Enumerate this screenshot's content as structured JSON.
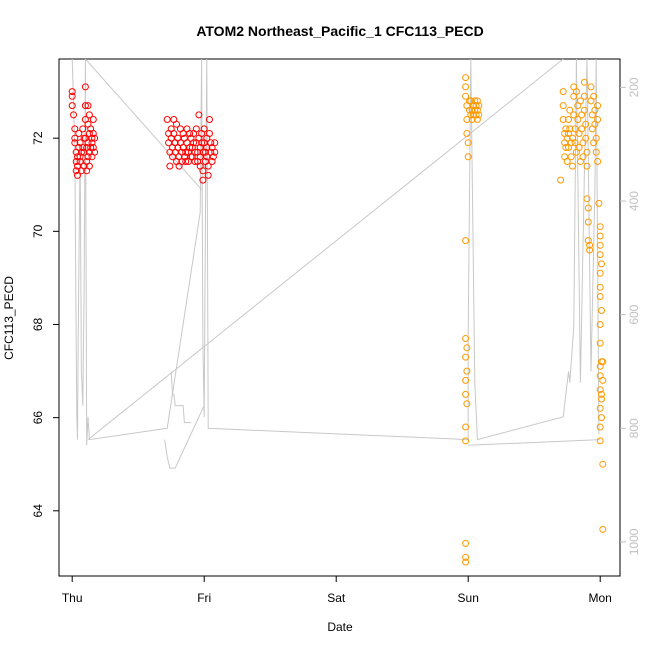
{
  "chart_data": {
    "type": "scatter",
    "title": "ATOM2 Northeast_Pacific_1 CFC113_PECD",
    "xlabel": "Date",
    "ylabel": "CFC113_PECD",
    "xlim": [
      -0.1,
      4.15
    ],
    "ylim": [
      62.6,
      73.7
    ],
    "x_ticks": [
      {
        "value": 0,
        "label": "Thu"
      },
      {
        "value": 1,
        "label": "Fri"
      },
      {
        "value": 2,
        "label": "Sat"
      },
      {
        "value": 3,
        "label": "Sun"
      },
      {
        "value": 4,
        "label": "Mon"
      }
    ],
    "y_ticks": [
      64,
      66,
      68,
      70,
      72
    ],
    "y2_ticks": [
      200,
      400,
      600,
      800,
      1000
    ],
    "y2_range": [
      1060,
      150
    ],
    "colors": {
      "series_a": "#ff0000",
      "series_b": "#ff9900",
      "profile_line": "#c8c8c8",
      "axis": "#000000",
      "right_axis": "#c0c0c0"
    },
    "series": [
      {
        "color": "#ff0000",
        "points": [
          [
            0.0,
            73.0
          ],
          [
            0.0,
            72.9
          ],
          [
            0.0,
            72.7
          ],
          [
            0.01,
            72.5
          ],
          [
            0.02,
            72.2
          ],
          [
            0.02,
            72.0
          ],
          [
            0.02,
            71.9
          ],
          [
            0.03,
            71.7
          ],
          [
            0.03,
            71.5
          ],
          [
            0.04,
            71.6
          ],
          [
            0.04,
            71.4
          ],
          [
            0.04,
            71.2
          ],
          [
            0.03,
            71.3
          ],
          [
            0.05,
            71.8
          ],
          [
            0.05,
            72.1
          ],
          [
            0.06,
            71.9
          ],
          [
            0.06,
            71.6
          ],
          [
            0.06,
            71.5
          ],
          [
            0.07,
            71.7
          ],
          [
            0.07,
            71.3
          ],
          [
            0.08,
            71.8
          ],
          [
            0.08,
            72.2
          ],
          [
            0.09,
            72.0
          ],
          [
            0.09,
            71.7
          ],
          [
            0.09,
            71.4
          ],
          [
            0.1,
            73.1
          ],
          [
            0.1,
            72.7
          ],
          [
            0.1,
            72.4
          ],
          [
            0.1,
            72.0
          ],
          [
            0.11,
            71.8
          ],
          [
            0.11,
            71.5
          ],
          [
            0.11,
            71.3
          ],
          [
            0.12,
            72.7
          ],
          [
            0.12,
            72.3
          ],
          [
            0.12,
            71.9
          ],
          [
            0.12,
            71.6
          ],
          [
            0.13,
            72.5
          ],
          [
            0.13,
            72.1
          ],
          [
            0.13,
            71.7
          ],
          [
            0.13,
            71.4
          ],
          [
            0.14,
            72.2
          ],
          [
            0.14,
            71.8
          ],
          [
            0.15,
            72.0
          ],
          [
            0.15,
            71.6
          ],
          [
            0.15,
            71.9
          ],
          [
            0.16,
            72.4
          ],
          [
            0.16,
            72.1
          ],
          [
            0.16,
            71.8
          ],
          [
            0.17,
            72.0
          ],
          [
            0.17,
            71.7
          ],
          [
            0.72,
            72.4
          ],
          [
            0.73,
            72.1
          ],
          [
            0.73,
            71.9
          ],
          [
            0.74,
            71.7
          ],
          [
            0.74,
            71.4
          ],
          [
            0.75,
            72.2
          ],
          [
            0.75,
            72.0
          ],
          [
            0.76,
            71.8
          ],
          [
            0.76,
            71.6
          ],
          [
            0.77,
            72.4
          ],
          [
            0.77,
            72.1
          ],
          [
            0.78,
            71.9
          ],
          [
            0.78,
            71.7
          ],
          [
            0.79,
            71.5
          ],
          [
            0.79,
            72.3
          ],
          [
            0.8,
            72.0
          ],
          [
            0.8,
            71.8
          ],
          [
            0.81,
            71.6
          ],
          [
            0.81,
            71.4
          ],
          [
            0.82,
            72.2
          ],
          [
            0.82,
            71.9
          ],
          [
            0.83,
            71.7
          ],
          [
            0.83,
            71.5
          ],
          [
            0.84,
            72.1
          ],
          [
            0.84,
            71.8
          ],
          [
            0.85,
            71.6
          ],
          [
            0.85,
            72.0
          ],
          [
            0.86,
            71.7
          ],
          [
            0.86,
            71.5
          ],
          [
            0.87,
            72.2
          ],
          [
            0.87,
            71.9
          ],
          [
            0.88,
            71.7
          ],
          [
            0.88,
            71.5
          ],
          [
            0.89,
            72.1
          ],
          [
            0.89,
            71.8
          ],
          [
            0.9,
            71.6
          ],
          [
            0.9,
            72.0
          ],
          [
            0.91,
            71.8
          ],
          [
            0.91,
            71.6
          ],
          [
            0.92,
            72.1
          ],
          [
            0.92,
            71.9
          ],
          [
            0.93,
            71.7
          ],
          [
            0.93,
            71.5
          ],
          [
            0.94,
            72.2
          ],
          [
            0.94,
            71.9
          ],
          [
            0.95,
            71.7
          ],
          [
            0.95,
            71.5
          ],
          [
            0.96,
            72.5
          ],
          [
            0.96,
            72.0
          ],
          [
            0.97,
            71.8
          ],
          [
            0.97,
            71.6
          ],
          [
            0.97,
            71.4
          ],
          [
            0.98,
            72.1
          ],
          [
            0.98,
            71.9
          ],
          [
            0.99,
            71.7
          ],
          [
            0.99,
            71.3
          ],
          [
            0.99,
            71.1
          ],
          [
            1.0,
            72.2
          ],
          [
            1.0,
            71.9
          ],
          [
            1.01,
            71.7
          ],
          [
            1.01,
            71.5
          ],
          [
            1.02,
            72.0
          ],
          [
            1.02,
            71.8
          ],
          [
            1.02,
            71.6
          ],
          [
            1.03,
            71.4
          ],
          [
            1.03,
            71.2
          ],
          [
            1.04,
            72.4
          ],
          [
            1.04,
            72.1
          ],
          [
            1.05,
            71.9
          ],
          [
            1.05,
            71.7
          ],
          [
            1.06,
            71.5
          ],
          [
            1.06,
            71.8
          ],
          [
            1.07,
            71.6
          ],
          [
            1.08,
            71.9
          ],
          [
            1.08,
            71.7
          ]
        ]
      },
      {
        "color": "#ff9900",
        "points": [
          [
            2.98,
            73.3
          ],
          [
            2.98,
            73.1
          ],
          [
            2.98,
            72.9
          ],
          [
            2.99,
            72.7
          ],
          [
            2.99,
            72.4
          ],
          [
            2.99,
            72.1
          ],
          [
            3.0,
            71.9
          ],
          [
            3.0,
            71.6
          ],
          [
            2.98,
            69.8
          ],
          [
            2.98,
            67.7
          ],
          [
            2.99,
            67.5
          ],
          [
            2.98,
            67.3
          ],
          [
            2.99,
            67.0
          ],
          [
            2.98,
            66.8
          ],
          [
            2.98,
            66.5
          ],
          [
            2.99,
            66.3
          ],
          [
            2.98,
            65.8
          ],
          [
            2.98,
            65.5
          ],
          [
            2.98,
            63.3
          ],
          [
            2.98,
            63.0
          ],
          [
            2.98,
            62.9
          ],
          [
            3.01,
            72.8
          ],
          [
            3.01,
            72.6
          ],
          [
            3.02,
            72.5
          ],
          [
            3.02,
            72.8
          ],
          [
            3.03,
            72.6
          ],
          [
            3.03,
            72.4
          ],
          [
            3.04,
            72.7
          ],
          [
            3.04,
            72.5
          ],
          [
            3.05,
            72.8
          ],
          [
            3.05,
            72.6
          ],
          [
            3.06,
            72.7
          ],
          [
            3.06,
            72.5
          ],
          [
            3.07,
            72.8
          ],
          [
            3.07,
            72.6
          ],
          [
            3.07,
            72.4
          ],
          [
            3.08,
            72.7
          ],
          [
            3.08,
            72.5
          ],
          [
            3.7,
            71.1
          ],
          [
            3.72,
            73.0
          ],
          [
            3.72,
            72.7
          ],
          [
            3.72,
            72.4
          ],
          [
            3.73,
            72.1
          ],
          [
            3.73,
            71.9
          ],
          [
            3.73,
            71.6
          ],
          [
            3.74,
            72.2
          ],
          [
            3.74,
            71.8
          ],
          [
            3.75,
            72.0
          ],
          [
            3.75,
            71.5
          ],
          [
            3.76,
            72.4
          ],
          [
            3.76,
            72.1
          ],
          [
            3.76,
            71.8
          ],
          [
            3.77,
            72.6
          ],
          [
            3.77,
            72.2
          ],
          [
            3.78,
            71.9
          ],
          [
            3.78,
            71.6
          ],
          [
            3.79,
            72.0
          ],
          [
            3.79,
            71.4
          ],
          [
            3.8,
            73.1
          ],
          [
            3.8,
            72.9
          ],
          [
            3.8,
            72.5
          ],
          [
            3.81,
            72.2
          ],
          [
            3.81,
            71.9
          ],
          [
            3.82,
            71.7
          ],
          [
            3.82,
            73.0
          ],
          [
            3.83,
            72.7
          ],
          [
            3.83,
            72.4
          ],
          [
            3.84,
            72.1
          ],
          [
            3.84,
            71.8
          ],
          [
            3.85,
            71.5
          ],
          [
            3.85,
            72.8
          ],
          [
            3.86,
            72.5
          ],
          [
            3.86,
            72.2
          ],
          [
            3.87,
            71.9
          ],
          [
            3.87,
            71.6
          ],
          [
            3.88,
            73.2
          ],
          [
            3.88,
            72.9
          ],
          [
            3.88,
            72.6
          ],
          [
            3.89,
            72.3
          ],
          [
            3.89,
            72.0
          ],
          [
            3.9,
            71.7
          ],
          [
            3.9,
            71.4
          ],
          [
            3.9,
            70.7
          ],
          [
            3.91,
            70.5
          ],
          [
            3.91,
            70.2
          ],
          [
            3.91,
            69.8
          ],
          [
            3.92,
            69.7
          ],
          [
            3.92,
            69.6
          ],
          [
            3.93,
            73.1
          ],
          [
            3.93,
            72.8
          ],
          [
            3.94,
            72.5
          ],
          [
            3.94,
            72.2
          ],
          [
            3.95,
            71.9
          ],
          [
            3.95,
            72.9
          ],
          [
            3.96,
            72.6
          ],
          [
            3.96,
            72.3
          ],
          [
            3.97,
            72.0
          ],
          [
            3.97,
            71.7
          ],
          [
            3.98,
            72.7
          ],
          [
            3.98,
            72.4
          ],
          [
            3.98,
            71.5
          ],
          [
            3.99,
            70.6
          ],
          [
            4.0,
            70.1
          ],
          [
            4.0,
            69.9
          ],
          [
            4.0,
            69.7
          ],
          [
            4.0,
            69.5
          ],
          [
            4.01,
            69.3
          ],
          [
            4.0,
            69.1
          ],
          [
            4.0,
            68.8
          ],
          [
            4.0,
            68.6
          ],
          [
            4.01,
            68.3
          ],
          [
            4.0,
            68.0
          ],
          [
            4.0,
            67.6
          ],
          [
            4.01,
            67.2
          ],
          [
            4.0,
            66.9
          ],
          [
            4.0,
            66.6
          ],
          [
            4.01,
            66.4
          ],
          [
            4.0,
            66.2
          ],
          [
            4.01,
            66.0
          ],
          [
            4.0,
            65.8
          ],
          [
            4.0,
            65.5
          ],
          [
            4.0,
            67.1
          ],
          [
            4.01,
            66.5
          ],
          [
            4.02,
            65.0
          ],
          [
            4.02,
            63.6
          ],
          [
            4.02,
            67.2
          ],
          [
            4.02,
            66.8
          ]
        ]
      }
    ],
    "profile_line_depth": [
      [
        0.0,
        150
      ],
      [
        0.02,
        300
      ],
      [
        0.03,
        650
      ],
      [
        0.035,
        780
      ],
      [
        0.04,
        820
      ],
      [
        0.045,
        660
      ],
      [
        0.06,
        300
      ],
      [
        0.07,
        700
      ],
      [
        0.08,
        760
      ],
      [
        0.09,
        560
      ],
      [
        0.1,
        150
      ],
      [
        0.11,
        830
      ],
      [
        0.12,
        780
      ],
      [
        0.13,
        820
      ],
      [
        0.72,
        800
      ],
      [
        0.97,
        420
      ],
      [
        0.98,
        150
      ],
      [
        0.99,
        650
      ],
      [
        1.0,
        780
      ],
      [
        1.01,
        420
      ],
      [
        1.02,
        150
      ],
      [
        1.03,
        800
      ],
      [
        3.0,
        820
      ],
      [
        3.0,
        630
      ],
      [
        3.02,
        150
      ],
      [
        3.05,
        720
      ],
      [
        3.07,
        820
      ],
      [
        3.72,
        780
      ],
      [
        3.76,
        700
      ],
      [
        3.77,
        720
      ],
      [
        3.8,
        620
      ],
      [
        3.82,
        150
      ],
      [
        3.85,
        720
      ],
      [
        3.88,
        350
      ],
      [
        3.9,
        150
      ],
      [
        3.93,
        700
      ],
      [
        3.96,
        380
      ],
      [
        3.97,
        150
      ],
      [
        3.99,
        810
      ]
    ],
    "profile_extra": [
      [
        0.7,
        820
      ],
      [
        0.72,
        850
      ],
      [
        0.74,
        870
      ],
      [
        0.76,
        870
      ],
      [
        0.78,
        870
      ],
      [
        0.8,
        860
      ],
      [
        0.82,
        850
      ],
      [
        0.84,
        840
      ],
      [
        0.86,
        830
      ],
      [
        0.88,
        820
      ],
      [
        0.9,
        810
      ],
      [
        0.92,
        800
      ],
      [
        0.94,
        790
      ],
      [
        0.96,
        780
      ],
      [
        0.98,
        770
      ],
      [
        1.0,
        760
      ]
    ],
    "profile_lower": [
      [
        0.75,
        700
      ],
      [
        0.76,
        740
      ],
      [
        0.77,
        740
      ],
      [
        0.78,
        760
      ],
      [
        0.84,
        760
      ],
      [
        0.85,
        790
      ],
      [
        0.9,
        790
      ]
    ],
    "profile_connectors": [
      [
        0.1,
        150
      ],
      [
        0.98,
        380
      ],
      [
        0.12,
        820
      ],
      [
        3.72,
        150
      ],
      [
        3.0,
        830
      ],
      [
        4.0,
        820
      ]
    ]
  }
}
